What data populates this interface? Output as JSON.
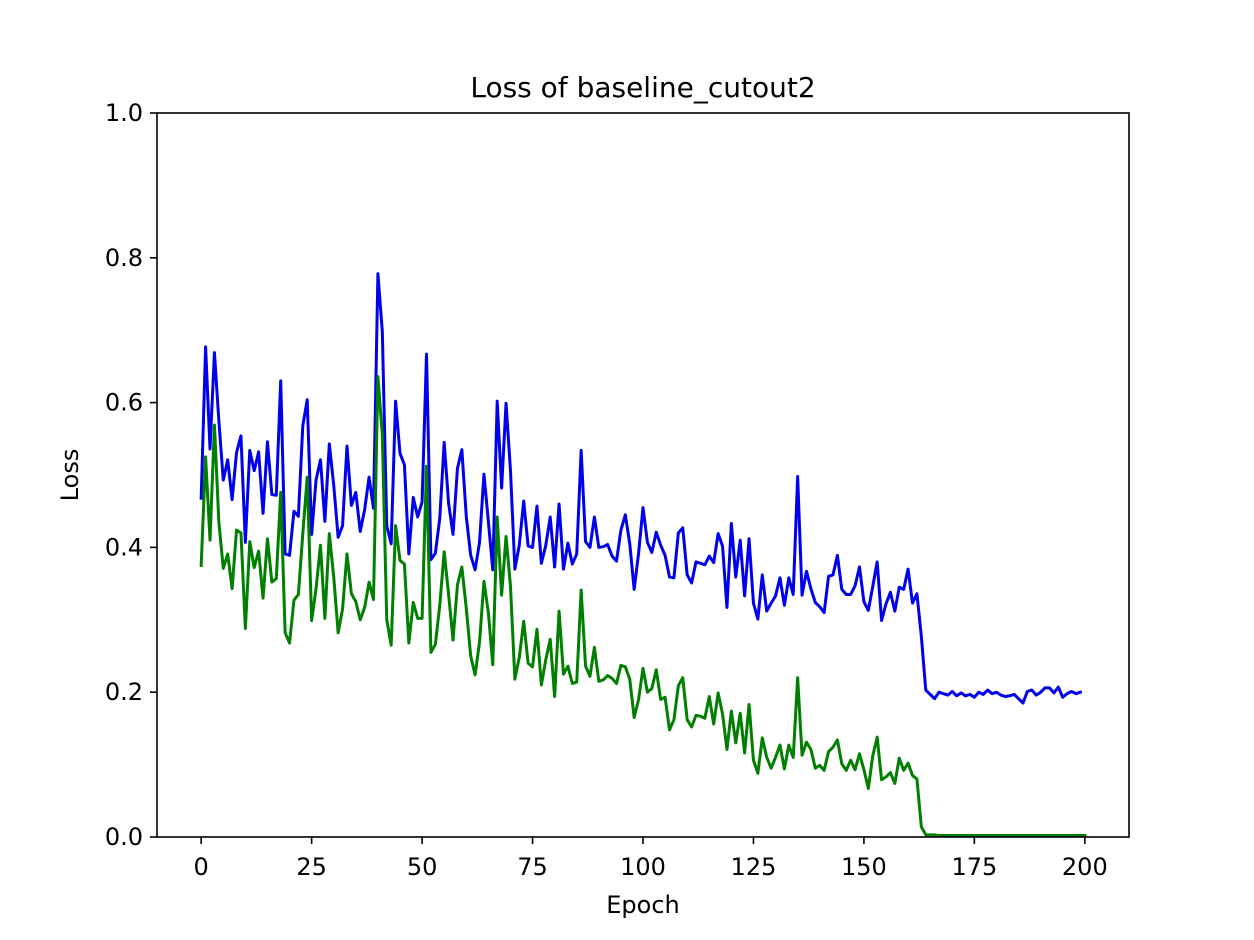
{
  "chart_data": {
    "type": "line",
    "title": "Loss of baseline_cutout2",
    "xlabel": "Epoch",
    "ylabel": "Loss",
    "xlim": [
      -10,
      210
    ],
    "ylim": [
      0.0,
      1.0
    ],
    "xticks": [
      0,
      25,
      50,
      75,
      100,
      125,
      150,
      175,
      200
    ],
    "xtick_labels": [
      "0",
      "25",
      "50",
      "75",
      "100",
      "125",
      "150",
      "175",
      "200"
    ],
    "yticks": [
      0.0,
      0.2,
      0.4,
      0.6,
      0.8,
      1.0
    ],
    "ytick_labels": [
      "0.0",
      "0.2",
      "0.4",
      "0.6",
      "0.8",
      "1.0"
    ],
    "grid": false,
    "legend": "none",
    "series": [
      {
        "color": "#0000ee",
        "values": [
          0.468,
          0.677,
          0.536,
          0.669,
          0.575,
          0.493,
          0.521,
          0.466,
          0.531,
          0.554,
          0.407,
          0.534,
          0.506,
          0.532,
          0.447,
          0.546,
          0.473,
          0.472,
          0.63,
          0.391,
          0.389,
          0.45,
          0.443,
          0.568,
          0.604,
          0.418,
          0.493,
          0.521,
          0.436,
          0.543,
          0.486,
          0.414,
          0.43,
          0.54,
          0.458,
          0.476,
          0.422,
          0.452,
          0.497,
          0.454,
          0.778,
          0.698,
          0.43,
          0.405,
          0.602,
          0.53,
          0.514,
          0.391,
          0.469,
          0.442,
          0.463,
          0.667,
          0.383,
          0.392,
          0.44,
          0.545,
          0.461,
          0.418,
          0.509,
          0.535,
          0.443,
          0.389,
          0.369,
          0.407,
          0.501,
          0.436,
          0.369,
          0.602,
          0.482,
          0.599,
          0.507,
          0.37,
          0.403,
          0.464,
          0.402,
          0.4,
          0.457,
          0.378,
          0.403,
          0.442,
          0.373,
          0.46,
          0.37,
          0.406,
          0.377,
          0.391,
          0.534,
          0.408,
          0.4,
          0.442,
          0.4,
          0.401,
          0.404,
          0.388,
          0.381,
          0.424,
          0.445,
          0.405,
          0.342,
          0.392,
          0.455,
          0.407,
          0.393,
          0.421,
          0.403,
          0.389,
          0.359,
          0.358,
          0.42,
          0.427,
          0.362,
          0.351,
          0.38,
          0.378,
          0.376,
          0.388,
          0.379,
          0.419,
          0.402,
          0.317,
          0.433,
          0.359,
          0.41,
          0.333,
          0.412,
          0.323,
          0.301,
          0.362,
          0.312,
          0.323,
          0.333,
          0.358,
          0.32,
          0.358,
          0.335,
          0.498,
          0.334,
          0.367,
          0.343,
          0.324,
          0.318,
          0.31,
          0.36,
          0.362,
          0.389,
          0.342,
          0.335,
          0.335,
          0.347,
          0.373,
          0.325,
          0.313,
          0.346,
          0.38,
          0.299,
          0.322,
          0.338,
          0.312,
          0.345,
          0.342,
          0.37,
          0.323,
          0.336,
          0.277,
          0.203,
          0.197,
          0.191,
          0.2,
          0.198,
          0.196,
          0.201,
          0.195,
          0.199,
          0.195,
          0.197,
          0.193,
          0.2,
          0.197,
          0.203,
          0.198,
          0.2,
          0.196,
          0.194,
          0.195,
          0.197,
          0.191,
          0.185,
          0.201,
          0.203,
          0.196,
          0.2,
          0.206,
          0.206,
          0.199,
          0.207,
          0.193,
          0.198,
          0.201,
          0.198,
          0.2
        ]
      },
      {
        "color": "#007f00",
        "values": [
          0.375,
          0.525,
          0.41,
          0.569,
          0.435,
          0.371,
          0.391,
          0.343,
          0.424,
          0.42,
          0.288,
          0.408,
          0.372,
          0.395,
          0.33,
          0.412,
          0.352,
          0.357,
          0.476,
          0.282,
          0.268,
          0.327,
          0.335,
          0.419,
          0.497,
          0.299,
          0.343,
          0.403,
          0.302,
          0.419,
          0.359,
          0.282,
          0.315,
          0.391,
          0.336,
          0.325,
          0.3,
          0.317,
          0.352,
          0.328,
          0.636,
          0.555,
          0.3,
          0.265,
          0.43,
          0.382,
          0.377,
          0.268,
          0.324,
          0.302,
          0.302,
          0.512,
          0.255,
          0.266,
          0.32,
          0.394,
          0.335,
          0.272,
          0.348,
          0.373,
          0.316,
          0.25,
          0.224,
          0.269,
          0.353,
          0.31,
          0.238,
          0.442,
          0.334,
          0.415,
          0.347,
          0.218,
          0.248,
          0.298,
          0.24,
          0.235,
          0.287,
          0.21,
          0.245,
          0.273,
          0.194,
          0.312,
          0.225,
          0.236,
          0.212,
          0.214,
          0.341,
          0.236,
          0.222,
          0.262,
          0.215,
          0.217,
          0.223,
          0.219,
          0.212,
          0.237,
          0.235,
          0.218,
          0.165,
          0.19,
          0.233,
          0.2,
          0.205,
          0.231,
          0.19,
          0.193,
          0.148,
          0.162,
          0.209,
          0.22,
          0.162,
          0.152,
          0.168,
          0.167,
          0.164,
          0.194,
          0.156,
          0.199,
          0.17,
          0.121,
          0.174,
          0.13,
          0.171,
          0.116,
          0.183,
          0.106,
          0.088,
          0.137,
          0.11,
          0.095,
          0.11,
          0.127,
          0.094,
          0.127,
          0.11,
          0.22,
          0.113,
          0.131,
          0.121,
          0.095,
          0.099,
          0.092,
          0.118,
          0.124,
          0.134,
          0.101,
          0.092,
          0.106,
          0.093,
          0.115,
          0.093,
          0.067,
          0.112,
          0.138,
          0.079,
          0.083,
          0.089,
          0.074,
          0.109,
          0.092,
          0.102,
          0.085,
          0.08,
          0.014,
          0.003,
          0.003,
          0.003,
          0.002,
          0.002,
          0.002,
          0.002,
          0.002,
          0.002,
          0.002,
          0.002,
          0.002,
          0.002,
          0.002,
          0.002,
          0.002,
          0.002,
          0.002,
          0.002,
          0.002,
          0.002,
          0.002,
          0.002,
          0.002,
          0.002,
          0.002,
          0.002,
          0.002,
          0.002,
          0.002,
          0.002,
          0.002,
          0.002,
          0.002,
          0.002,
          0.002,
          0.002
        ]
      }
    ]
  }
}
